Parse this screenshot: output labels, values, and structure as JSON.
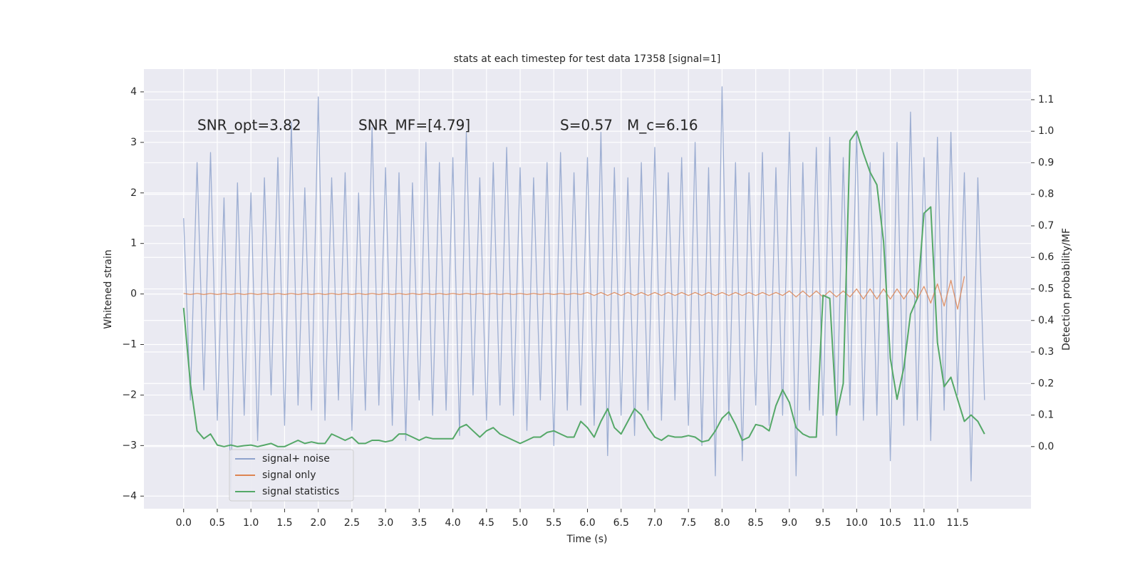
{
  "chart_data": {
    "type": "line",
    "title": "stats at each timestep for test data 17358 [signal=1]",
    "x_label": "Time (s)",
    "y_label": "Whitened strain",
    "y2_label": "Detection probability/MF",
    "annotations": [
      "SNR_opt=3.82",
      "SNR_MF=[4.79]",
      "S=0.57",
      "M_c=6.16"
    ],
    "x": [
      0,
      0.1,
      0.2,
      0.3,
      0.4,
      0.5,
      0.6,
      0.7,
      0.8,
      0.9,
      1,
      1.1,
      1.2,
      1.3,
      1.4,
      1.5,
      1.6,
      1.7,
      1.8,
      1.9,
      2,
      2.1,
      2.2,
      2.3,
      2.4,
      2.5,
      2.6,
      2.7,
      2.8,
      2.9,
      3,
      3.1,
      3.2,
      3.3,
      3.4,
      3.5,
      3.6,
      3.7,
      3.8,
      3.9,
      4,
      4.1,
      4.2,
      4.3,
      4.4,
      4.5,
      4.6,
      4.7,
      4.8,
      4.9,
      5,
      5.1,
      5.2,
      5.3,
      5.4,
      5.5,
      5.6,
      5.7,
      5.8,
      5.9,
      6,
      6.1,
      6.2,
      6.3,
      6.4,
      6.5,
      6.6,
      6.7,
      6.8,
      6.9,
      7,
      7.1,
      7.2,
      7.3,
      7.4,
      7.5,
      7.6,
      7.7,
      7.8,
      7.9,
      8,
      8.1,
      8.2,
      8.3,
      8.4,
      8.5,
      8.6,
      8.7,
      8.8,
      8.9,
      9,
      9.1,
      9.2,
      9.3,
      9.4,
      9.5,
      9.6,
      9.7,
      9.8,
      9.9,
      10,
      10.1,
      10.2,
      10.3,
      10.4,
      10.5,
      10.6,
      10.7,
      10.8,
      10.9,
      11,
      11.1,
      11.2,
      11.3,
      11.4,
      11.5,
      11.6,
      11.7,
      11.8,
      11.9
    ],
    "series": [
      {
        "name": "signal+ noise",
        "color": "#8fa3cd",
        "axis": "y",
        "values": [
          1.5,
          -2.1,
          2.6,
          -1.9,
          2.8,
          -2.5,
          1.9,
          -3.9,
          2.2,
          -2.4,
          2.0,
          -2.9,
          2.3,
          -2.0,
          2.7,
          -2.6,
          3.4,
          -2.2,
          2.1,
          -2.3,
          3.9,
          -2.5,
          2.3,
          -2.1,
          2.4,
          -2.7,
          2.0,
          -2.3,
          3.3,
          -2.2,
          2.5,
          -2.6,
          2.4,
          -2.9,
          2.2,
          -2.1,
          3.0,
          -2.4,
          2.6,
          -2.3,
          2.7,
          -2.8,
          3.2,
          -2.0,
          2.3,
          -2.5,
          2.6,
          -2.2,
          2.9,
          -2.4,
          2.5,
          -2.7,
          2.3,
          -2.1,
          2.6,
          -3.0,
          2.8,
          -2.3,
          2.4,
          -2.2,
          2.7,
          -2.6,
          3.2,
          -3.2,
          2.5,
          -2.4,
          2.3,
          -2.8,
          2.6,
          -2.3,
          2.9,
          -2.5,
          2.4,
          -2.1,
          2.7,
          -2.6,
          3.0,
          -3.0,
          2.5,
          -3.6,
          4.1,
          -2.5,
          2.6,
          -3.3,
          2.4,
          -2.2,
          2.8,
          -2.6,
          2.5,
          -2.4,
          3.2,
          -3.6,
          2.6,
          -2.3,
          2.9,
          -2.4,
          3.1,
          -2.8,
          2.7,
          -2.2,
          3.2,
          -2.5,
          2.6,
          -2.4,
          2.8,
          -3.3,
          3.0,
          -2.6,
          3.6,
          -2.5,
          2.7,
          -2.9,
          3.1,
          -2.3,
          3.2,
          -2.0,
          2.4,
          -3.7,
          2.3,
          -2.1
        ]
      },
      {
        "name": "signal only",
        "color": "#dd8452",
        "axis": "y",
        "values": [
          0.01,
          -0.01,
          0.01,
          -0.01,
          0.01,
          -0.01,
          0.01,
          -0.01,
          0.01,
          -0.01,
          0.01,
          -0.01,
          0.01,
          -0.01,
          0.01,
          -0.01,
          0.01,
          -0.01,
          0.01,
          -0.01,
          0.01,
          -0.01,
          0.01,
          -0.01,
          0.01,
          -0.01,
          0.01,
          -0.01,
          0.01,
          -0.01,
          0.01,
          -0.01,
          0.01,
          -0.01,
          0.01,
          -0.01,
          0.01,
          -0.01,
          0.01,
          -0.01,
          0.01,
          -0.01,
          0.01,
          -0.01,
          0.01,
          -0.01,
          0.01,
          -0.01,
          0.01,
          -0.01,
          0.01,
          -0.01,
          0.01,
          -0.01,
          0.01,
          -0.01,
          0.01,
          -0.01,
          0.01,
          -0.01,
          0.03,
          -0.03,
          0.03,
          -0.03,
          0.03,
          -0.03,
          0.03,
          -0.03,
          0.03,
          -0.03,
          0.03,
          -0.03,
          0.03,
          -0.03,
          0.03,
          -0.03,
          0.03,
          -0.03,
          0.03,
          -0.03,
          0.03,
          -0.03,
          0.03,
          -0.03,
          0.03,
          -0.03,
          0.03,
          -0.03,
          0.03,
          -0.03,
          0.06,
          -0.06,
          0.06,
          -0.06,
          0.06,
          -0.06,
          0.06,
          -0.06,
          0.06,
          -0.06,
          0.1,
          -0.1,
          0.1,
          -0.1,
          0.1,
          -0.1,
          0.1,
          -0.1,
          0.1,
          -0.1,
          0.15,
          -0.18,
          0.2,
          -0.24,
          0.27,
          -0.3,
          0.35,
          null,
          null,
          null
        ]
      },
      {
        "name": "signal statistics",
        "color": "#55a868",
        "axis": "y2",
        "values": [
          0.44,
          0.2,
          0.05,
          0.025,
          0.04,
          0.005,
          0.0,
          0.005,
          0.0,
          0.003,
          0.005,
          0.0,
          0.005,
          0.01,
          0.0,
          0.0,
          0.01,
          0.02,
          0.01,
          0.015,
          0.01,
          0.01,
          0.04,
          0.03,
          0.02,
          0.03,
          0.01,
          0.01,
          0.02,
          0.02,
          0.015,
          0.02,
          0.04,
          0.04,
          0.03,
          0.02,
          0.03,
          0.025,
          0.025,
          0.025,
          0.025,
          0.06,
          0.07,
          0.05,
          0.03,
          0.05,
          0.06,
          0.04,
          0.03,
          0.02,
          0.01,
          0.02,
          0.03,
          0.03,
          0.045,
          0.05,
          0.04,
          0.03,
          0.03,
          0.08,
          0.06,
          0.03,
          0.08,
          0.12,
          0.06,
          0.04,
          0.08,
          0.12,
          0.1,
          0.06,
          0.03,
          0.02,
          0.035,
          0.03,
          0.03,
          0.035,
          0.03,
          0.015,
          0.02,
          0.05,
          0.09,
          0.11,
          0.07,
          0.02,
          0.03,
          0.07,
          0.065,
          0.05,
          0.13,
          0.18,
          0.14,
          0.06,
          0.04,
          0.03,
          0.03,
          0.48,
          0.47,
          0.1,
          0.2,
          0.97,
          1.0,
          0.93,
          0.87,
          0.83,
          0.65,
          0.28,
          0.15,
          0.25,
          0.42,
          0.47,
          0.74,
          0.76,
          0.33,
          0.19,
          0.22,
          0.15,
          0.08,
          0.1,
          0.08,
          0.04
        ]
      }
    ],
    "xlim": [
      -0.59,
      12.59
    ],
    "ylim": [
      -4.25,
      4.45
    ],
    "y2lim": [
      -0.197,
      1.197
    ],
    "xticks": [
      {
        "value": 0,
        "label": "0.0"
      },
      0.5,
      {
        "value": 1,
        "label": "1.0"
      },
      1.5,
      {
        "value": 2,
        "label": "2.0"
      },
      2.5,
      {
        "value": 3,
        "label": "3.0"
      },
      3.5,
      {
        "value": 4,
        "label": "4.0"
      },
      4.5,
      {
        "value": 5,
        "label": "5.0"
      },
      5.5,
      {
        "value": 6,
        "label": "6.0"
      },
      6.5,
      {
        "value": 7,
        "label": "7.0"
      },
      7.5,
      {
        "value": 8,
        "label": "8.0"
      },
      8.5,
      {
        "value": 9,
        "label": "9.0"
      },
      9.5,
      {
        "value": 10,
        "label": "10.0"
      },
      10.5,
      {
        "value": 11,
        "label": "11.0"
      },
      11.5
    ],
    "yticks": [
      {
        "value": -4,
        "label": "−4"
      },
      {
        "value": -3,
        "label": "−3"
      },
      {
        "value": -2,
        "label": "−2"
      },
      {
        "value": -1,
        "label": "−1"
      },
      0,
      1,
      2,
      3,
      4
    ],
    "y2ticks": [
      {
        "value": 0,
        "label": "0.0"
      },
      0.1,
      0.2,
      0.3,
      0.4,
      0.5,
      0.6,
      0.7,
      0.8,
      0.9,
      {
        "value": 1,
        "label": "1.0"
      },
      1.1
    ],
    "grid": true,
    "legend": "lower left"
  }
}
